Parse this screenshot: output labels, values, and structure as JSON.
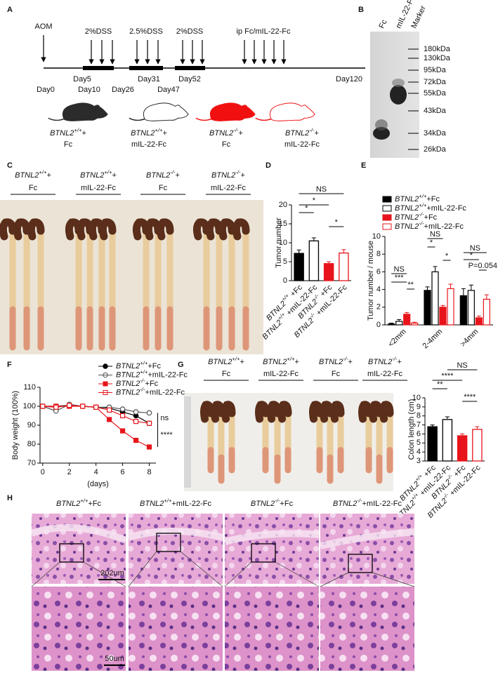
{
  "figure": {
    "panel_letters": [
      "A",
      "B",
      "C",
      "D",
      "E",
      "F",
      "G",
      "H"
    ],
    "panel_a": {
      "treatments": [
        "AOM",
        "2%DSS",
        "2.5%DSS",
        "2%DSS",
        "ip Fc/mIL-22-Fc"
      ],
      "days": [
        "Day0",
        "Day5",
        "Day10",
        "Day26",
        "Day31",
        "Day47",
        "Day52",
        "Day120"
      ],
      "mice": [
        {
          "label": [
            "BTNL2",
            "+/+",
            "+"
          ],
          "treatment": "Fc"
        },
        {
          "label": [
            "BTNL2",
            "+/+",
            "+"
          ],
          "treatment": "mIL-22-Fc"
        },
        {
          "label": [
            "BTNL2",
            "-/-",
            "+"
          ],
          "treatment": "Fc"
        },
        {
          "label": [
            "BTNL2",
            "-/-",
            "+"
          ],
          "treatment": "mIL-22-Fc"
        }
      ]
    },
    "panel_b": {
      "lanes": [
        "Fc",
        "mIL-22-Fc",
        "Marker"
      ],
      "markers": [
        "180kDa",
        "130kDa",
        "95kDa",
        "72kDa",
        "55kDa",
        "43kDa",
        "34kDa",
        "26kDa"
      ]
    },
    "panel_c": {
      "groups": [
        {
          "label": [
            "BTNL2",
            "+/+",
            "+"
          ],
          "treatment": "Fc"
        },
        {
          "label": [
            "BTNL2",
            "+/+",
            "+"
          ],
          "treatment": "mIL-22-Fc"
        },
        {
          "label": [
            "BTNL2",
            "-/-",
            "+"
          ],
          "treatment": "Fc"
        },
        {
          "label": [
            "BTNL2",
            "-/-",
            "+"
          ],
          "treatment": "mIL-22-Fc"
        }
      ]
    },
    "panel_g": {
      "groups": [
        {
          "label": [
            "BTNL2",
            "+/+",
            "+"
          ],
          "treatment": "Fc"
        },
        {
          "label": [
            "BTNL2",
            "+/+",
            "+"
          ],
          "treatment": "mIL-22-Fc"
        },
        {
          "label": [
            "BTNL2",
            "-/-",
            "+"
          ],
          "treatment": "Fc"
        },
        {
          "label": [
            "BTNL2",
            "-/-",
            "+"
          ],
          "treatment": "mIL-22-Fc"
        }
      ]
    },
    "panel_h": {
      "groups": [
        [
          "BTNL2",
          "+/+",
          "+Fc"
        ],
        [
          "BTNL2",
          "+/+",
          "+mIL-22-Fc"
        ],
        [
          "BTNL2",
          "-/-",
          "+Fc"
        ],
        [
          "BTNL2",
          "-/-",
          "+mIL-22-Fc"
        ]
      ],
      "scale_bars": [
        "202um",
        "50um"
      ]
    }
  },
  "chart_data": [
    {
      "type": "bar",
      "ylabel": "Tumor number",
      "categories": [
        [
          "BTNL2",
          "+/+",
          " +Fc"
        ],
        [
          "BTNL2",
          "+/+",
          " +mIL-22-Fc"
        ],
        [
          "BTNL2",
          "-/-",
          " +Fc"
        ],
        [
          "BTNL2",
          "-/-",
          " +mIL-22-Fc"
        ]
      ],
      "values": [
        7.2,
        10.5,
        4.5,
        7.3
      ],
      "errors": [
        0.9,
        0.8,
        0.5,
        0.9
      ],
      "colors": [
        "#000000",
        "#ffffff",
        "#e8141b",
        "#ffffff"
      ],
      "edge_colors": [
        "#000000",
        "#000000",
        "#e8141b",
        "#e8141b"
      ],
      "ylim": [
        0,
        20
      ],
      "yticks": [
        0,
        5,
        10,
        15,
        20
      ],
      "annotations": [
        "NS",
        "*",
        "*",
        "*"
      ]
    },
    {
      "type": "grouped_bar",
      "ylabel": "Tumor number / mouse",
      "categories": [
        "<2mm",
        "2-4mm",
        ">4mm"
      ],
      "series": [
        {
          "name": [
            "BTNL2",
            "+/+",
            "+Fc"
          ],
          "color": "#000000",
          "edge_color": "#000000",
          "values": [
            0.1,
            3.9,
            3.3
          ],
          "errors": [
            0.1,
            0.4,
            0.8
          ]
        },
        {
          "name": [
            "BTNL2",
            "+/+",
            "+mIL-22-Fc"
          ],
          "color": "#ffffff",
          "edge_color": "#000000",
          "values": [
            0.4,
            6.0,
            3.9
          ],
          "errors": [
            0.2,
            0.6,
            0.6
          ]
        },
        {
          "name": [
            "BTNL2",
            "-/-",
            "+Fc"
          ],
          "color": "#e8141b",
          "edge_color": "#e8141b",
          "values": [
            1.2,
            2.0,
            0.8
          ],
          "errors": [
            0.2,
            0.2,
            0.2
          ]
        },
        {
          "name": [
            "BTNL2",
            "-/-",
            "+mIL-22-Fc"
          ],
          "color": "#ffffff",
          "edge_color": "#e8141b",
          "values": [
            0.2,
            4.1,
            2.9
          ],
          "errors": [
            0.1,
            0.5,
            0.5
          ]
        }
      ],
      "ylim": [
        0,
        10
      ],
      "yticks": [
        0,
        2,
        4,
        6,
        8,
        10
      ],
      "annotations": [
        "NS",
        "***",
        "**",
        "NS",
        "*",
        "*",
        "NS",
        "*",
        "P=0.054"
      ]
    },
    {
      "type": "line",
      "xlabel": "(days)",
      "ylabel": "Body weight (100%)",
      "x": [
        0,
        1,
        2,
        3,
        4,
        5,
        6,
        7,
        8
      ],
      "series": [
        {
          "name": [
            "BTNL2",
            "+/+",
            "+Fc"
          ],
          "color": "#000000",
          "marker": "circle",
          "filled": true,
          "values": [
            100,
            100,
            100.5,
            100,
            99.5,
            99,
            97,
            95,
            91
          ]
        },
        {
          "name": [
            "BTNL2",
            "+/+",
            "+mIL-22-Fc"
          ],
          "color": "#555555",
          "marker": "circle",
          "filled": false,
          "values": [
            100,
            97.5,
            101,
            100,
            99.5,
            99.5,
            98.5,
            97,
            96.5
          ]
        },
        {
          "name": [
            "BTNL2",
            "-/-",
            "+Fc"
          ],
          "color": "#e8141b",
          "marker": "square",
          "filled": true,
          "values": [
            100,
            100,
            100,
            100,
            99.5,
            93,
            87,
            82,
            78.5
          ]
        },
        {
          "name": [
            "BTNL2",
            "-/-",
            "+mIL-22-Fc"
          ],
          "color": "#e8141b",
          "marker": "square",
          "filled": false,
          "values": [
            100,
            99.5,
            100.5,
            100,
            99.5,
            98,
            95,
            92,
            91
          ]
        }
      ],
      "xlim": [
        -0.2,
        8.5
      ],
      "xticks": [
        0,
        2,
        4,
        6,
        8
      ],
      "ylim": [
        70,
        110
      ],
      "yticks": [
        70,
        80,
        90,
        100,
        110
      ],
      "annotations": [
        "ns",
        "****"
      ]
    },
    {
      "type": "bar",
      "ylabel": "Colon length (cm)",
      "categories": [
        [
          "BTNL2",
          "+/+",
          " +Fc"
        ],
        [
          "BTNL2",
          "+/+",
          " +mIL-22-Fc"
        ],
        [
          "BTNL2",
          "-/-",
          " +Fc"
        ],
        [
          "BTNL2",
          "-/-",
          " +mIL-22-Fc"
        ]
      ],
      "values": [
        6.8,
        7.6,
        5.8,
        6.5
      ],
      "errors": [
        0.2,
        0.3,
        0.2,
        0.3
      ],
      "colors": [
        "#000000",
        "#ffffff",
        "#e8141b",
        "#ffffff"
      ],
      "edge_colors": [
        "#000000",
        "#000000",
        "#e8141b",
        "#e8141b"
      ],
      "ylim": [
        3,
        10
      ],
      "yticks": [
        3,
        4,
        5,
        6,
        7,
        8,
        9,
        10
      ],
      "annotations": [
        "NS",
        "****",
        "**",
        "****"
      ]
    }
  ]
}
